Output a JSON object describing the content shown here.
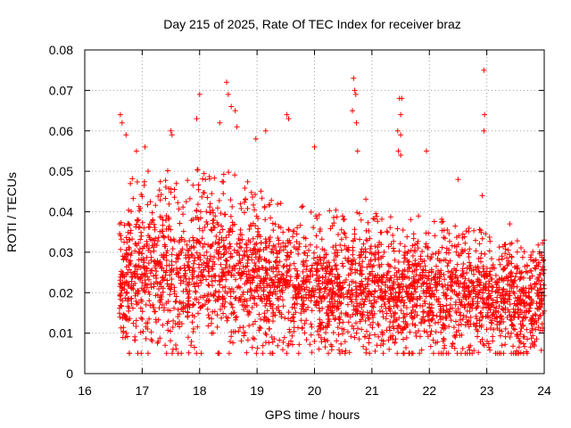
{
  "chart_data": {
    "type": "scatter",
    "title": "Day 215 of 2025, Rate Of TEC Index for receiver braz",
    "xlabel": "GPS time / hours",
    "ylabel": "ROTI / TECUs",
    "xlim": [
      16,
      24
    ],
    "ylim": [
      0,
      0.08
    ],
    "x_ticks": [
      "16",
      "17",
      "18",
      "19",
      "20",
      "21",
      "22",
      "23",
      "24"
    ],
    "y_ticks": [
      "0",
      "0.01",
      "0.02",
      "0.03",
      "0.04",
      "0.05",
      "0.06",
      "0.07",
      "0.08"
    ],
    "grid": true,
    "marker": "+",
    "series_color": "#ff0000",
    "x_start": 16.6,
    "x_end": 24.0,
    "density_profile": [
      {
        "x": 16.6,
        "median": 0.021,
        "spread": 0.008,
        "upper": 0.045
      },
      {
        "x": 17.0,
        "median": 0.024,
        "spread": 0.009,
        "upper": 0.05
      },
      {
        "x": 17.5,
        "median": 0.024,
        "spread": 0.009,
        "upper": 0.048
      },
      {
        "x": 18.0,
        "median": 0.025,
        "spread": 0.009,
        "upper": 0.05
      },
      {
        "x": 18.5,
        "median": 0.024,
        "spread": 0.009,
        "upper": 0.05
      },
      {
        "x": 19.0,
        "median": 0.022,
        "spread": 0.008,
        "upper": 0.045
      },
      {
        "x": 19.5,
        "median": 0.021,
        "spread": 0.007,
        "upper": 0.042
      },
      {
        "x": 20.0,
        "median": 0.02,
        "spread": 0.007,
        "upper": 0.04
      },
      {
        "x": 20.5,
        "median": 0.02,
        "spread": 0.007,
        "upper": 0.04
      },
      {
        "x": 21.0,
        "median": 0.02,
        "spread": 0.007,
        "upper": 0.038
      },
      {
        "x": 21.5,
        "median": 0.019,
        "spread": 0.007,
        "upper": 0.036
      },
      {
        "x": 22.0,
        "median": 0.019,
        "spread": 0.007,
        "upper": 0.038
      },
      {
        "x": 22.5,
        "median": 0.019,
        "spread": 0.007,
        "upper": 0.038
      },
      {
        "x": 23.0,
        "median": 0.018,
        "spread": 0.006,
        "upper": 0.034
      },
      {
        "x": 23.5,
        "median": 0.017,
        "spread": 0.006,
        "upper": 0.03
      },
      {
        "x": 24.0,
        "median": 0.018,
        "spread": 0.006,
        "upper": 0.03
      }
    ],
    "outliers": [
      [
        16.62,
        0.064
      ],
      [
        16.65,
        0.062
      ],
      [
        16.72,
        0.059
      ],
      [
        16.9,
        0.055
      ],
      [
        17.05,
        0.056
      ],
      [
        17.5,
        0.06
      ],
      [
        17.52,
        0.059
      ],
      [
        17.95,
        0.063
      ],
      [
        18.0,
        0.069
      ],
      [
        18.35,
        0.062
      ],
      [
        18.47,
        0.072
      ],
      [
        18.5,
        0.069
      ],
      [
        18.55,
        0.066
      ],
      [
        18.62,
        0.065
      ],
      [
        18.65,
        0.061
      ],
      [
        18.98,
        0.058
      ],
      [
        19.15,
        0.06
      ],
      [
        19.52,
        0.064
      ],
      [
        19.55,
        0.063
      ],
      [
        20.0,
        0.056
      ],
      [
        20.68,
        0.073
      ],
      [
        20.7,
        0.07
      ],
      [
        20.72,
        0.069
      ],
      [
        20.66,
        0.065
      ],
      [
        20.73,
        0.062
      ],
      [
        20.75,
        0.055
      ],
      [
        21.48,
        0.068
      ],
      [
        21.52,
        0.068
      ],
      [
        21.5,
        0.064
      ],
      [
        21.45,
        0.06
      ],
      [
        21.5,
        0.059
      ],
      [
        21.46,
        0.055
      ],
      [
        21.5,
        0.054
      ],
      [
        21.95,
        0.055
      ],
      [
        22.5,
        0.048
      ],
      [
        22.95,
        0.075
      ],
      [
        22.96,
        0.064
      ],
      [
        22.95,
        0.06
      ],
      [
        22.92,
        0.044
      ],
      [
        23.4,
        0.037
      ],
      [
        23.5,
        0.005
      ],
      [
        21.3,
        0.006
      ],
      [
        21.55,
        0.005
      ],
      [
        17.4,
        0.007
      ],
      [
        17.85,
        0.007
      ],
      [
        20.9,
        0.006
      ],
      [
        24.0,
        0.033
      ]
    ]
  }
}
